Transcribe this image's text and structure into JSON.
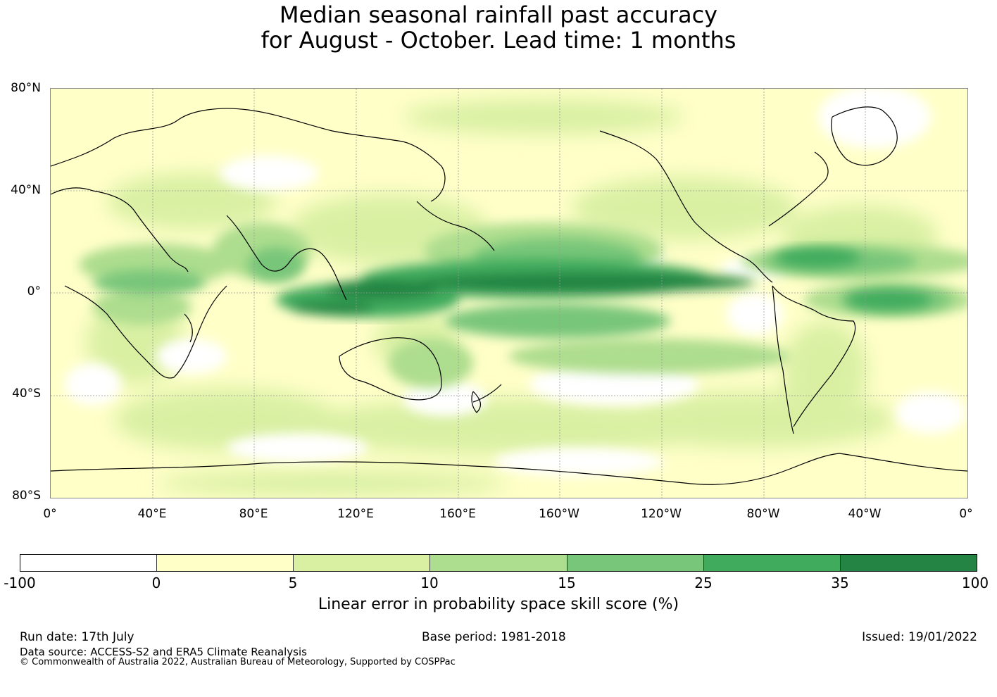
{
  "title": {
    "line1": "Median seasonal rainfall past accuracy",
    "line2": "for August - October. Lead time: 1 months"
  },
  "map": {
    "lat_labels": [
      "80°N",
      "40°N",
      "0°",
      "40°S",
      "80°S"
    ],
    "lon_labels": [
      "0°",
      "40°E",
      "80°E",
      "120°E",
      "160°E",
      "160°W",
      "120°W",
      "80°W",
      "40°W",
      "0°"
    ],
    "background_color": "#ffffc8",
    "coastline_color": "#000000"
  },
  "colorbar": {
    "ticks": [
      "-100",
      "0",
      "5",
      "10",
      "15",
      "25",
      "35",
      "100"
    ],
    "colors": [
      "#ffffff",
      "#ffffc8",
      "#d9f0a3",
      "#addd8e",
      "#78c679",
      "#41ab5d",
      "#238443"
    ],
    "label": "Linear error in probability space skill score (%)"
  },
  "footer": {
    "run_date": "Run date: 17th July",
    "base_period": "Base period: 1981-2018",
    "issued": "Issued: 19/01/2022",
    "data_source": "Data source: ACCESS-S2 and ERA5 Climate Reanalysis",
    "copyright": "© Commonwealth of Australia 2022, Australian Bureau of Meteorology, Supported by COSPPac"
  }
}
